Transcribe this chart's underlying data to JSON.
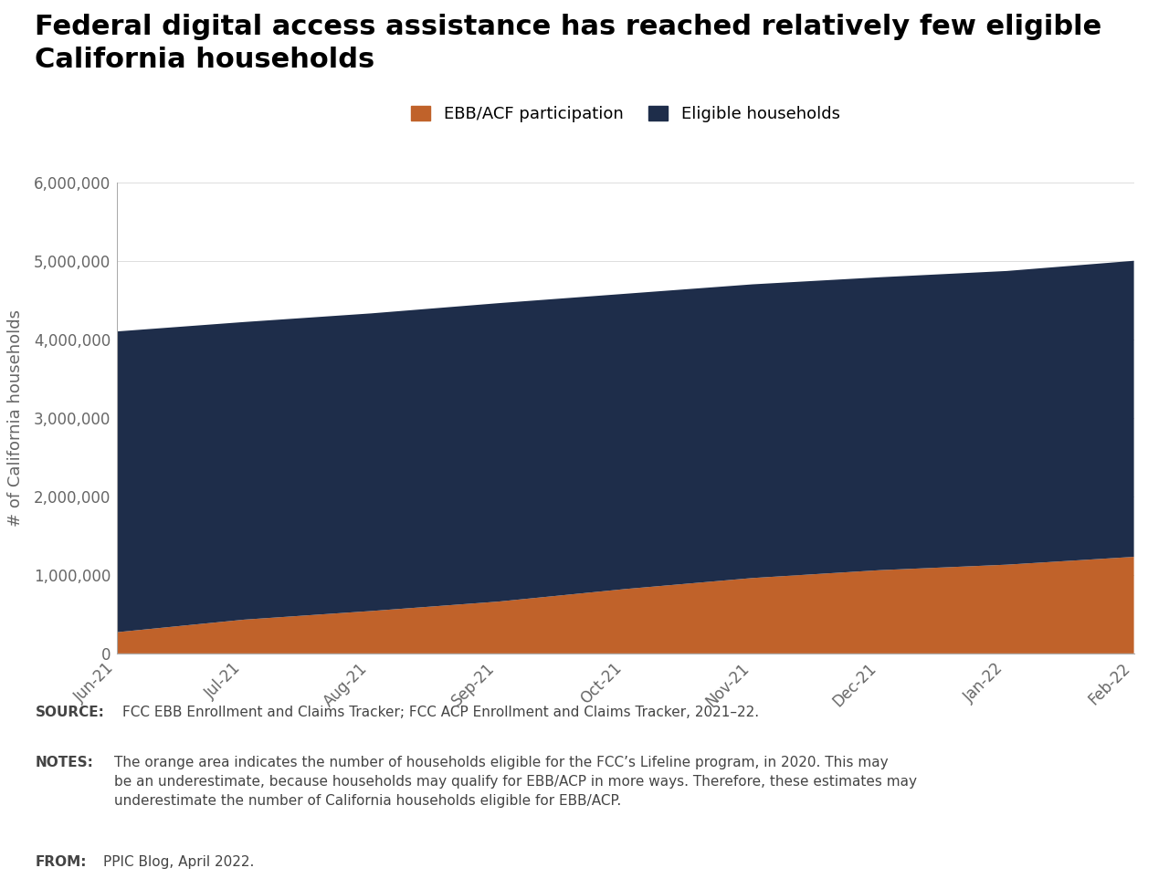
{
  "title": "Federal digital access assistance has reached relatively few eligible\nCalifornia households",
  "ylabel": "# of California households",
  "categories": [
    "Jun-21",
    "Jul-21",
    "Aug-21",
    "Sep-21",
    "Oct-21",
    "Nov-21",
    "Dec-21",
    "Jan-22",
    "Feb-22"
  ],
  "ebb_acf": [
    270000,
    430000,
    540000,
    660000,
    820000,
    960000,
    1060000,
    1130000,
    1230000
  ],
  "eligible": [
    3830000,
    3790000,
    3790000,
    3800000,
    3760000,
    3740000,
    3730000,
    3740000,
    3770000
  ],
  "ebb_color": "#c0622a",
  "eligible_color": "#1e2d4a",
  "legend_ebb": "EBB/ACF participation",
  "legend_eligible": "Eligible households",
  "ylim": [
    0,
    6000000
  ],
  "yticks": [
    0,
    1000000,
    2000000,
    3000000,
    4000000,
    5000000,
    6000000
  ],
  "background_color": "#ffffff",
  "footer_bg": "#e0e0e0",
  "title_fontsize": 22,
  "axis_label_fontsize": 13,
  "tick_fontsize": 12,
  "legend_fontsize": 13,
  "footer_fontsize": 11
}
